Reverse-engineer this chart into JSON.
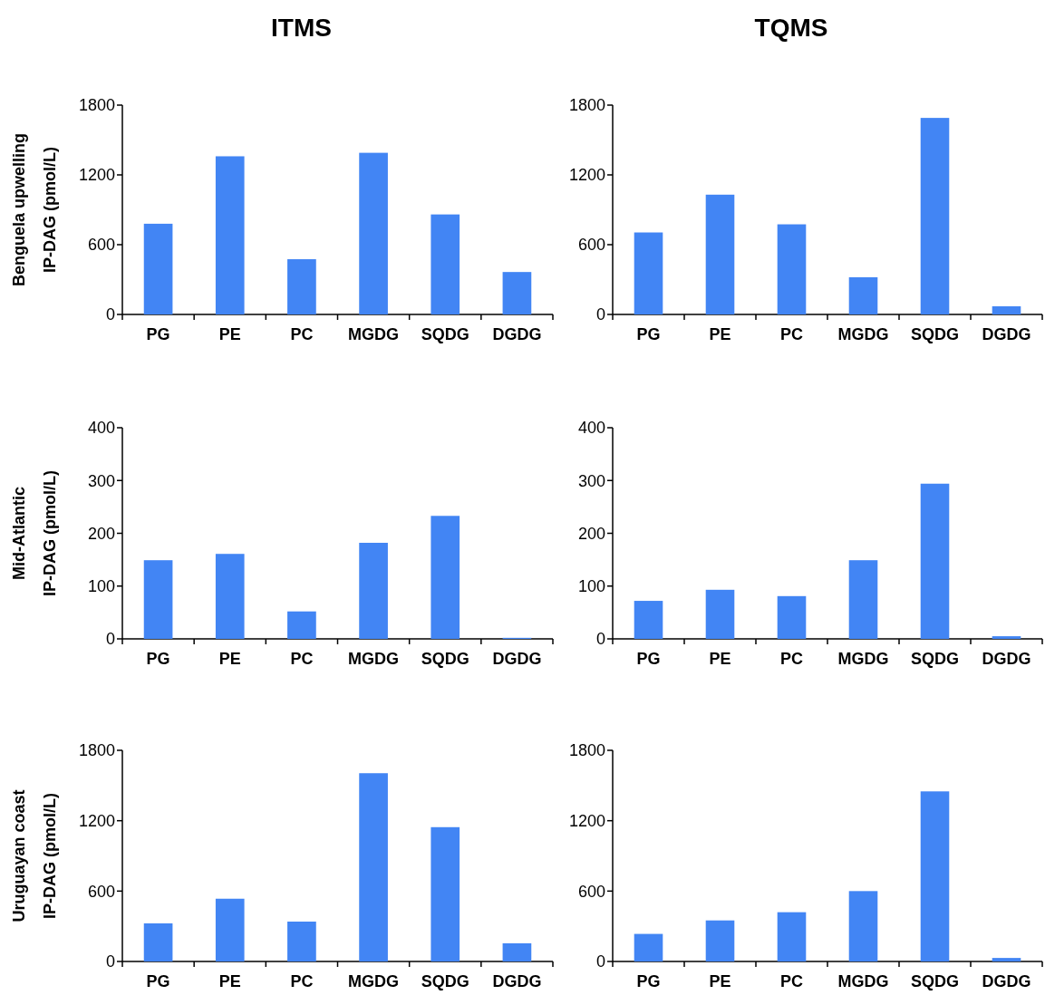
{
  "chart_data": [
    {
      "type": "bar",
      "title": "ITMS",
      "ylabel": "Benguela upwelling\nIP-DAG (pmol/L)",
      "categories": [
        "PG",
        "PE",
        "PC",
        "MGDG",
        "SQDG",
        "DGDG"
      ],
      "values": [
        780,
        1360,
        475,
        1390,
        860,
        365
      ],
      "color": "#4285f4",
      "ylim": [
        0,
        1800
      ],
      "yticks": [
        0,
        600,
        1200,
        1800
      ],
      "grid": false
    },
    {
      "type": "bar",
      "title": "TQMS",
      "categories": [
        "PG",
        "PE",
        "PC",
        "MGDG",
        "SQDG",
        "DGDG"
      ],
      "values": [
        705,
        1030,
        775,
        320,
        1690,
        70
      ],
      "color": "#4285f4",
      "ylim": [
        0,
        1800
      ],
      "yticks": [
        0,
        600,
        1200,
        1800
      ],
      "grid": false
    },
    {
      "type": "bar",
      "ylabel": "Mid-Atlantic\nIP-DAG (pmol/L)",
      "categories": [
        "PG",
        "PE",
        "PC",
        "MGDG",
        "SQDG",
        "DGDG"
      ],
      "values": [
        149,
        161,
        52,
        182,
        233,
        2
      ],
      "color": "#4285f4",
      "ylim": [
        0,
        400
      ],
      "yticks": [
        0,
        100,
        200,
        300,
        400
      ],
      "grid": false
    },
    {
      "type": "bar",
      "categories": [
        "PG",
        "PE",
        "PC",
        "MGDG",
        "SQDG",
        "DGDG"
      ],
      "values": [
        72,
        93,
        81,
        149,
        294,
        5
      ],
      "color": "#4285f4",
      "ylim": [
        0,
        400
      ],
      "yticks": [
        0,
        100,
        200,
        300,
        400
      ],
      "grid": false
    },
    {
      "type": "bar",
      "ylabel": "Uruguayan coast\nIP-DAG (pmol/L)",
      "categories": [
        "PG",
        "PE",
        "PC",
        "MGDG",
        "SQDG",
        "DGDG"
      ],
      "values": [
        325,
        535,
        340,
        1605,
        1145,
        155
      ],
      "color": "#4285f4",
      "ylim": [
        0,
        1800
      ],
      "yticks": [
        0,
        600,
        1200,
        1800
      ],
      "grid": false
    },
    {
      "type": "bar",
      "categories": [
        "PG",
        "PE",
        "PC",
        "MGDG",
        "SQDG",
        "DGDG"
      ],
      "values": [
        235,
        350,
        420,
        600,
        1450,
        30
      ],
      "color": "#4285f4",
      "ylim": [
        0,
        1800
      ],
      "yticks": [
        0,
        600,
        1200,
        1800
      ],
      "grid": false
    }
  ]
}
